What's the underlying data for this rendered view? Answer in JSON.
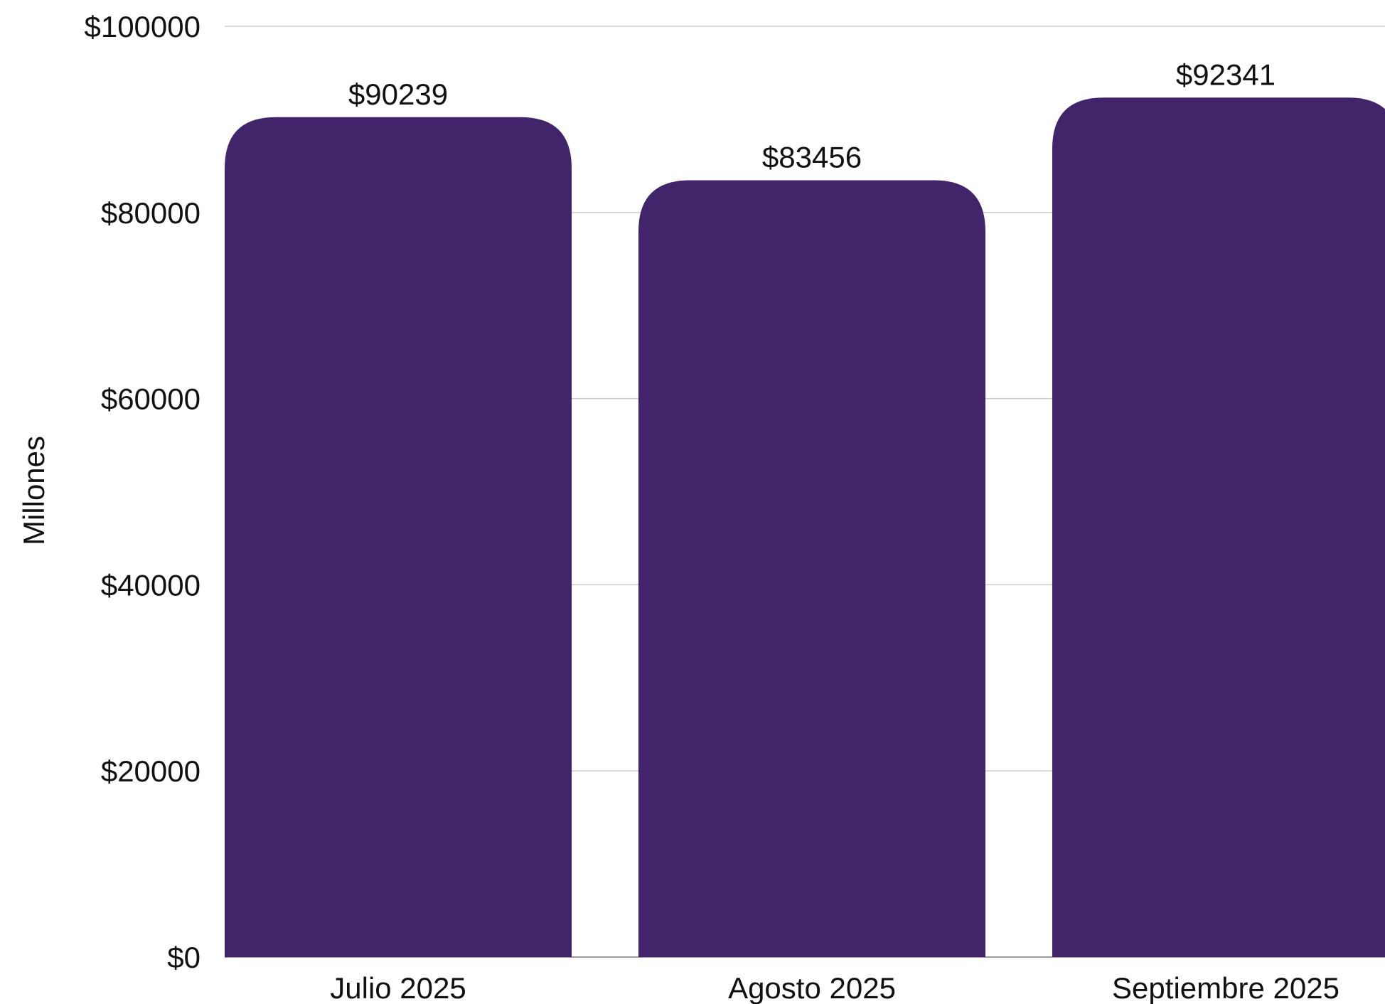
{
  "chart_data": {
    "type": "bar",
    "categories": [
      "Julio 2025",
      "Agosto 2025",
      "Septiembre 2025"
    ],
    "values": [
      90239,
      83456,
      92341
    ],
    "value_labels": [
      "$90239",
      "$83456",
      "$92341"
    ],
    "ylabel": "Millones",
    "ylim": [
      0,
      100000
    ],
    "yticks": [
      0,
      20000,
      40000,
      60000,
      80000,
      100000
    ],
    "ytick_labels": [
      "$0",
      "$20000",
      "$40000",
      "$60000",
      "$80000",
      "$100000"
    ],
    "grid": true,
    "legend": "none",
    "colors": {
      "bar": "#42246A",
      "grid": "#cccccc",
      "axis": "#999999",
      "text": "#111111"
    }
  }
}
